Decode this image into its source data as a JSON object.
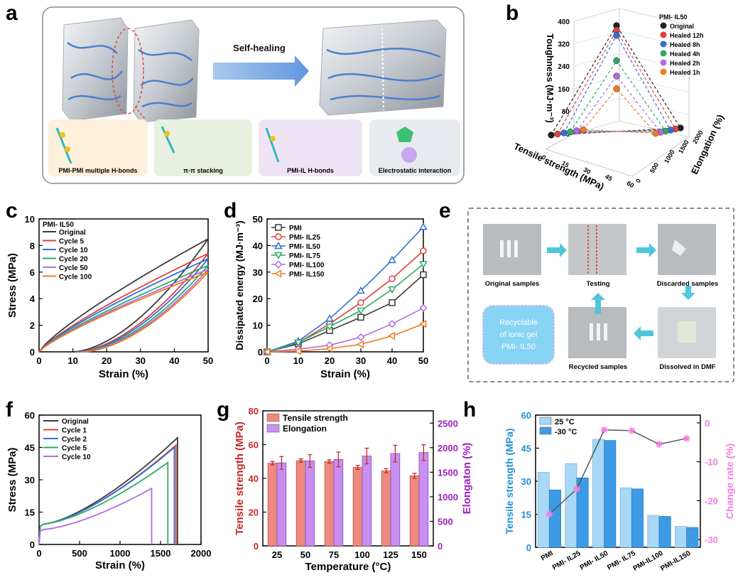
{
  "panel_labels": [
    "a",
    "b",
    "c",
    "d",
    "e",
    "f",
    "g",
    "h"
  ],
  "panel_a": {
    "arrow_label": "Self-healing",
    "mechanisms": [
      "PMI-PMI multiple H-bonds",
      "π-π stacking",
      "PMI-IL H-bonds",
      "Electrostatic interaction"
    ]
  },
  "panel_e": {
    "steps": [
      "Original samples",
      "Testing",
      "Discarded samples",
      "Dissolved in DMF",
      "Recycled samples"
    ],
    "center_note": [
      "Recyclable",
      "of ionic gel",
      "PMI- IL50"
    ]
  },
  "colors": {
    "black": "#3a3a3a",
    "red": "#e0403c",
    "blue": "#2f6fd6",
    "green": "#2fa968",
    "purple": "#b06ce0",
    "orange": "#f07a20",
    "bar_red": "#f08a80",
    "bar_purple": "#c98ff0",
    "h_light": "#a8d8f5",
    "h_dark": "#3d9be6",
    "pink": "#f47fe0"
  },
  "chart_data": [
    {
      "panel": "b",
      "type": "scatter3d",
      "legend_title": "PMI- IL50",
      "zlabel": "Toughness (MJ·m⁻³)",
      "xlabel": "Tensile strength (MPa)",
      "ylabel": "Elongation (%)",
      "z_ticks": [
        "0",
        "80",
        "160",
        "240",
        "320",
        "400"
      ],
      "x_ticks": [
        "0",
        "15",
        "30",
        "45",
        "60"
      ],
      "y_ticks": [
        "0",
        "500",
        "1000",
        "1500",
        "2000"
      ],
      "series": [
        {
          "name": "Original",
          "color": "#222222",
          "toughness": 385
        },
        {
          "name": "Healed 12h",
          "color": "#e0403c",
          "toughness": 368
        },
        {
          "name": "Healed 8h",
          "color": "#2f6fd6",
          "toughness": 350
        },
        {
          "name": "Healed 4h",
          "color": "#2fa968",
          "toughness": 260
        },
        {
          "name": "Healed 2h",
          "color": "#b06ce0",
          "toughness": 205
        },
        {
          "name": "Healed 1h",
          "color": "#f07a20",
          "toughness": 160
        }
      ]
    },
    {
      "panel": "c",
      "type": "line",
      "title": "PMI- IL50",
      "xlabel": "Strain (%)",
      "ylabel": "Stress (MPa)",
      "xlim": [
        0,
        50
      ],
      "ylim": [
        0,
        10
      ],
      "x_ticks": [
        0,
        10,
        20,
        30,
        40,
        50
      ],
      "y_ticks": [
        0,
        2,
        4,
        6,
        8,
        10
      ],
      "series": [
        {
          "name": "Original",
          "color": "#3a3a3a",
          "peak": 8.5,
          "return_strain": 10
        },
        {
          "name": "Cycle 5",
          "color": "#e0403c",
          "peak": 7.4,
          "return_strain": 11
        },
        {
          "name": "Cycle 10",
          "color": "#2f6fd6",
          "peak": 7.0,
          "return_strain": 11.5
        },
        {
          "name": "Cycle 20",
          "color": "#2fa968",
          "peak": 6.5,
          "return_strain": 12
        },
        {
          "name": "Cycle 50",
          "color": "#b06ce0",
          "peak": 6.2,
          "return_strain": 12.5
        },
        {
          "name": "Cycle 100",
          "color": "#f07a20",
          "peak": 6.0,
          "return_strain": 13
        }
      ]
    },
    {
      "panel": "d",
      "type": "line",
      "xlabel": "Strain (%)",
      "ylabel": "Dissipated energy (MJ·m⁻³)",
      "xlim": [
        0,
        50
      ],
      "ylim": [
        0,
        50
      ],
      "x_ticks": [
        0,
        10,
        20,
        30,
        40,
        50
      ],
      "y_ticks": [
        0,
        10,
        20,
        30,
        40,
        50
      ],
      "x": [
        0,
        10,
        20,
        30,
        40,
        50
      ],
      "series": [
        {
          "name": "PMI",
          "color": "#3a3a3a",
          "marker": "square",
          "values": [
            0,
            3,
            8,
            13,
            18.5,
            29
          ]
        },
        {
          "name": "PMI- IL25",
          "color": "#e0403c",
          "marker": "circle",
          "values": [
            0,
            3.5,
            10.5,
            18.5,
            27.5,
            38
          ]
        },
        {
          "name": "PMI- IL50",
          "color": "#2f6fd6",
          "marker": "triangle-up",
          "values": [
            0,
            4,
            12.5,
            23,
            34.5,
            47
          ]
        },
        {
          "name": "PMI- IL75",
          "color": "#2fa968",
          "marker": "triangle-down",
          "values": [
            0,
            3.5,
            9.5,
            15.5,
            23.5,
            33
          ]
        },
        {
          "name": "PMI- IL100",
          "color": "#b06ce0",
          "marker": "diamond",
          "values": [
            0,
            1,
            2.5,
            5.5,
            10.5,
            16.5
          ]
        },
        {
          "name": "PMI- IL150",
          "color": "#f07a20",
          "marker": "triangle-left",
          "values": [
            0,
            0.3,
            1.2,
            2.8,
            6,
            10.5
          ]
        }
      ]
    },
    {
      "panel": "f",
      "type": "line",
      "xlabel": "Strain (%)",
      "ylabel": "Stress (MPa)",
      "xlim": [
        0,
        2000
      ],
      "ylim": [
        0,
        60
      ],
      "x_ticks": [
        0,
        500,
        1000,
        1500,
        2000
      ],
      "y_ticks": [
        0,
        15,
        30,
        45,
        60
      ],
      "series": [
        {
          "name": "Original",
          "color": "#3a3a3a",
          "break_strain": 1710,
          "break_stress": 49.5
        },
        {
          "name": "Cycle 1",
          "color": "#e0403c",
          "break_strain": 1690,
          "break_stress": 46
        },
        {
          "name": "Cycle 2",
          "color": "#2f6fd6",
          "break_strain": 1670,
          "break_stress": 45
        },
        {
          "name": "Cycle 5",
          "color": "#2fa968",
          "break_strain": 1590,
          "break_stress": 38
        },
        {
          "name": "Cycle 10",
          "color": "#b06ce0",
          "break_strain": 1390,
          "break_stress": 26
        }
      ]
    },
    {
      "panel": "g",
      "type": "bar",
      "xlabel": "Temperature (°C)",
      "ylabel": "Tensile strength (MPa)",
      "ylabel_right": "Elongaton (%)",
      "categories": [
        "25",
        "50",
        "75",
        "100",
        "125",
        "150"
      ],
      "ylim": [
        0,
        80
      ],
      "ylim_right": [
        0,
        2750
      ],
      "y_ticks": [
        0,
        20,
        40,
        60,
        80
      ],
      "y_ticks_right": [
        0,
        500,
        1000,
        1500,
        2000,
        2500
      ],
      "series": [
        {
          "name": "Tensile strength",
          "color": "#f08a80",
          "axis": "left",
          "values": [
            49,
            50.5,
            50,
            46.5,
            44.5,
            41.5
          ],
          "errors": [
            1,
            1,
            1,
            1.2,
            1.3,
            1.5
          ]
        },
        {
          "name": "Elongation",
          "color": "#c98ff0",
          "axis": "right",
          "values": [
            1690,
            1730,
            1760,
            1830,
            1880,
            1900
          ],
          "errors": [
            130,
            130,
            150,
            160,
            170,
            160
          ]
        }
      ]
    },
    {
      "panel": "h",
      "type": "bar",
      "ylabel": "Tensile strength (MPa)",
      "ylabel_right": "Change rate (%)",
      "categories": [
        "PMI",
        "PMI- IL25",
        "PMI- IL50",
        "PMI- IL75",
        "PMI-IL100",
        "PMI-IL150"
      ],
      "ylim": [
        0,
        60
      ],
      "ylim_right": [
        -32,
        2
      ],
      "y_ticks": [
        0,
        15,
        30,
        45,
        60
      ],
      "y_ticks_right": [
        0,
        -10,
        -20,
        -30
      ],
      "series": [
        {
          "name": "25 °C",
          "color": "#a8d8f5",
          "values": [
            34,
            38,
            49,
            27,
            14.5,
            9.5
          ]
        },
        {
          "name": "-30 °C",
          "color": "#3d9be6",
          "values": [
            26,
            31.5,
            48.5,
            26.5,
            14,
            9
          ]
        },
        {
          "name": "Change rate",
          "color": "#f47fe0",
          "type": "line",
          "values": [
            -23.5,
            -17,
            -1.8,
            -2,
            -5.5,
            -4
          ]
        }
      ]
    }
  ]
}
